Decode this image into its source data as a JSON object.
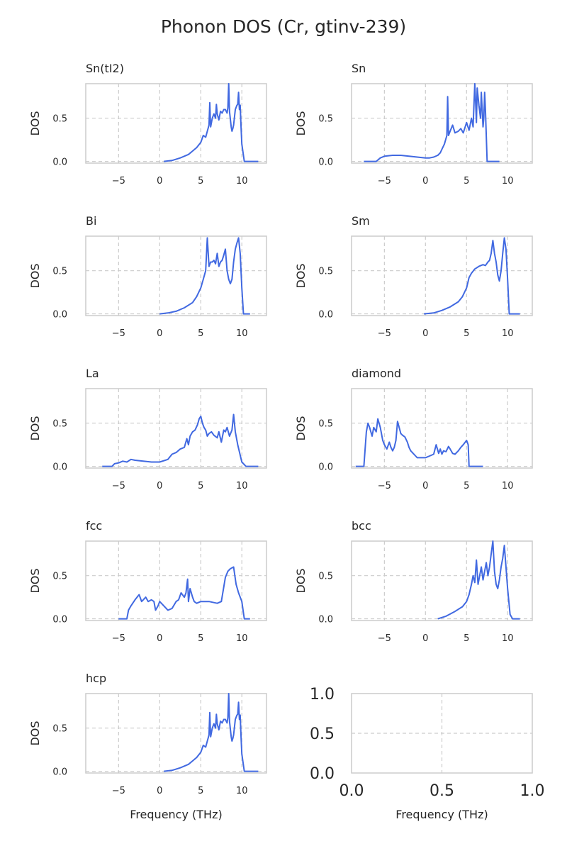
{
  "figure": {
    "suptitle": "Phonon DOS (Cr, gtinv-239)",
    "colors": {
      "line": "#4169e1",
      "grid": "#cccccc",
      "spine": "#cccccc",
      "text": "#262626"
    }
  },
  "chart_data": [
    {
      "type": "line",
      "title": "Sn(tI2)",
      "xlabel": "",
      "ylabel": "DOS",
      "xlim": [
        -9,
        13
      ],
      "ylim": [
        -0.02,
        0.9
      ],
      "xticks": [
        "−5",
        "0",
        "5",
        "10"
      ],
      "xtick_values": [
        -5,
        0,
        5,
        10
      ],
      "yticks": [
        "0.0",
        "0.5"
      ],
      "ytick_values": [
        0,
        0.5
      ],
      "grid": true,
      "series": [
        {
          "x": [
            0.5,
            1.5,
            2.5,
            3.5,
            4.0,
            4.5,
            5.0,
            5.3,
            5.6,
            5.8,
            6.0,
            6.1,
            6.2,
            6.4,
            6.6,
            6.8,
            6.9,
            7.0,
            7.2,
            7.4,
            7.6,
            7.8,
            8.0,
            8.2,
            8.3,
            8.4,
            8.5,
            8.7,
            8.8,
            8.9,
            9.0,
            9.2,
            9.4,
            9.5,
            9.6,
            9.7,
            9.8,
            9.9,
            10.0,
            10.3,
            10.6,
            11.0,
            12.0
          ],
          "y": [
            0.0,
            0.01,
            0.04,
            0.08,
            0.12,
            0.16,
            0.22,
            0.3,
            0.28,
            0.35,
            0.42,
            0.68,
            0.4,
            0.5,
            0.55,
            0.5,
            0.66,
            0.55,
            0.48,
            0.58,
            0.56,
            0.6,
            0.6,
            0.56,
            0.62,
            0.9,
            0.58,
            0.4,
            0.35,
            0.38,
            0.42,
            0.6,
            0.65,
            0.66,
            0.8,
            0.6,
            0.65,
            0.4,
            0.2,
            0.0,
            0.0,
            0.0,
            0.0
          ]
        }
      ]
    },
    {
      "type": "line",
      "title": "Sn",
      "xlabel": "",
      "ylabel": "DOS",
      "xlim": [
        -9,
        13
      ],
      "ylim": [
        -0.02,
        0.9
      ],
      "xticks": [
        "−5",
        "0",
        "5",
        "10"
      ],
      "xtick_values": [
        -5,
        0,
        5,
        10
      ],
      "yticks": [
        "0.0",
        "0.5"
      ],
      "ytick_values": [
        0,
        0.5
      ],
      "grid": true,
      "series": [
        {
          "x": [
            -7.5,
            -6.0,
            -5.5,
            -5.0,
            -4.0,
            -3.0,
            -2.0,
            -1.0,
            0.0,
            0.5,
            1.0,
            1.5,
            1.8,
            2.0,
            2.3,
            2.6,
            2.7,
            2.8,
            3.0,
            3.3,
            3.6,
            4.0,
            4.3,
            4.6,
            5.0,
            5.3,
            5.6,
            5.8,
            6.0,
            6.1,
            6.2,
            6.3,
            6.5,
            6.7,
            6.8,
            7.0,
            7.1,
            7.2,
            7.3,
            7.4,
            7.5,
            8.0,
            9.0
          ],
          "y": [
            0.0,
            0.0,
            0.04,
            0.06,
            0.07,
            0.07,
            0.06,
            0.05,
            0.04,
            0.04,
            0.05,
            0.07,
            0.1,
            0.14,
            0.2,
            0.3,
            0.75,
            0.3,
            0.35,
            0.42,
            0.33,
            0.35,
            0.38,
            0.33,
            0.45,
            0.36,
            0.5,
            0.4,
            0.9,
            0.7,
            0.45,
            0.85,
            0.65,
            0.5,
            0.8,
            0.4,
            0.5,
            0.8,
            0.6,
            0.3,
            0.0,
            0.0,
            0.0
          ]
        }
      ]
    },
    {
      "type": "line",
      "title": "Bi",
      "xlabel": "",
      "ylabel": "DOS",
      "xlim": [
        -9,
        13
      ],
      "ylim": [
        -0.02,
        0.9
      ],
      "xticks": [
        "−5",
        "0",
        "5",
        "10"
      ],
      "xtick_values": [
        -5,
        0,
        5,
        10
      ],
      "yticks": [
        "0.0",
        "0.5"
      ],
      "ytick_values": [
        0,
        0.5
      ],
      "grid": true,
      "series": [
        {
          "x": [
            0.0,
            1.0,
            2.0,
            3.0,
            4.0,
            4.5,
            5.0,
            5.3,
            5.6,
            5.8,
            6.0,
            6.2,
            6.4,
            6.6,
            6.8,
            7.0,
            7.2,
            7.4,
            7.6,
            7.8,
            8.0,
            8.2,
            8.4,
            8.6,
            8.8,
            9.0,
            9.2,
            9.4,
            9.6,
            9.8,
            10.0,
            10.2,
            10.5,
            11.0
          ],
          "y": [
            0.0,
            0.01,
            0.03,
            0.07,
            0.13,
            0.2,
            0.3,
            0.4,
            0.5,
            0.88,
            0.55,
            0.6,
            0.6,
            0.62,
            0.58,
            0.7,
            0.55,
            0.6,
            0.62,
            0.68,
            0.75,
            0.5,
            0.4,
            0.35,
            0.4,
            0.6,
            0.75,
            0.82,
            0.88,
            0.7,
            0.3,
            0.0,
            0.0,
            0.0
          ]
        }
      ]
    },
    {
      "type": "line",
      "title": "Sm",
      "xlabel": "",
      "ylabel": "DOS",
      "xlim": [
        -9,
        13
      ],
      "ylim": [
        -0.02,
        0.9
      ],
      "xticks": [
        "−5",
        "0",
        "5",
        "10"
      ],
      "xtick_values": [
        -5,
        0,
        5,
        10
      ],
      "yticks": [
        "0.0",
        "0.5"
      ],
      "ytick_values": [
        0,
        0.5
      ],
      "grid": true,
      "series": [
        {
          "x": [
            -0.2,
            1.0,
            2.0,
            3.0,
            4.0,
            4.5,
            5.0,
            5.3,
            5.6,
            6.0,
            6.5,
            7.0,
            7.3,
            7.6,
            7.8,
            8.0,
            8.2,
            8.4,
            8.6,
            8.8,
            9.0,
            9.2,
            9.4,
            9.6,
            9.8,
            10.0,
            10.2,
            10.5,
            11.0,
            11.5
          ],
          "y": [
            0.0,
            0.01,
            0.04,
            0.08,
            0.14,
            0.2,
            0.3,
            0.42,
            0.47,
            0.52,
            0.55,
            0.57,
            0.56,
            0.6,
            0.62,
            0.7,
            0.85,
            0.7,
            0.6,
            0.45,
            0.38,
            0.5,
            0.7,
            0.88,
            0.75,
            0.4,
            0.0,
            0.0,
            0.0,
            0.0
          ]
        }
      ]
    },
    {
      "type": "line",
      "title": "La",
      "xlabel": "",
      "ylabel": "DOS",
      "xlim": [
        -9,
        13
      ],
      "ylim": [
        -0.02,
        0.9
      ],
      "xticks": [
        "−5",
        "0",
        "5",
        "10"
      ],
      "xtick_values": [
        -5,
        0,
        5,
        10
      ],
      "yticks": [
        "0.0",
        "0.5"
      ],
      "ytick_values": [
        0,
        0.5
      ],
      "grid": true,
      "series": [
        {
          "x": [
            -7.0,
            -5.8,
            -5.5,
            -5.0,
            -4.5,
            -4.0,
            -3.5,
            -3.0,
            -2.0,
            -1.0,
            0.0,
            1.0,
            1.5,
            2.0,
            2.5,
            3.0,
            3.3,
            3.5,
            3.7,
            4.0,
            4.3,
            4.6,
            4.8,
            5.0,
            5.2,
            5.4,
            5.6,
            5.8,
            6.0,
            6.3,
            6.6,
            7.0,
            7.2,
            7.5,
            7.8,
            8.0,
            8.2,
            8.5,
            8.8,
            9.0,
            9.2,
            9.5,
            10.0,
            10.5,
            11.0,
            12.0
          ],
          "y": [
            0.0,
            0.0,
            0.03,
            0.04,
            0.06,
            0.05,
            0.08,
            0.07,
            0.06,
            0.05,
            0.05,
            0.08,
            0.14,
            0.16,
            0.2,
            0.22,
            0.32,
            0.25,
            0.35,
            0.4,
            0.42,
            0.48,
            0.55,
            0.58,
            0.5,
            0.45,
            0.42,
            0.35,
            0.38,
            0.4,
            0.36,
            0.33,
            0.4,
            0.28,
            0.42,
            0.4,
            0.45,
            0.35,
            0.42,
            0.6,
            0.4,
            0.25,
            0.05,
            0.0,
            0.0,
            0.0
          ]
        }
      ]
    },
    {
      "type": "line",
      "title": "diamond",
      "xlabel": "",
      "ylabel": "DOS",
      "xlim": [
        -9,
        13
      ],
      "ylim": [
        -0.02,
        0.9
      ],
      "xticks": [
        "−5",
        "0",
        "5",
        "10"
      ],
      "xtick_values": [
        -5,
        0,
        5,
        10
      ],
      "yticks": [
        "0.0",
        "0.5"
      ],
      "ytick_values": [
        0,
        0.5
      ],
      "grid": true,
      "series": [
        {
          "x": [
            -8.5,
            -7.5,
            -7.2,
            -7.0,
            -6.8,
            -6.5,
            -6.3,
            -6.0,
            -5.8,
            -5.5,
            -5.2,
            -5.0,
            -4.7,
            -4.4,
            -4.2,
            -4.0,
            -3.8,
            -3.6,
            -3.4,
            -3.2,
            -3.0,
            -2.8,
            -2.5,
            -2.2,
            -2.0,
            -1.8,
            -1.5,
            -1.2,
            -1.0,
            -0.5,
            0.0,
            0.5,
            1.0,
            1.3,
            1.6,
            1.8,
            2.0,
            2.2,
            2.5,
            2.8,
            3.0,
            3.3,
            3.6,
            4.0,
            4.3,
            4.6,
            5.0,
            5.2,
            5.3,
            5.5,
            6.0,
            7.0
          ],
          "y": [
            0.0,
            0.0,
            0.4,
            0.5,
            0.45,
            0.35,
            0.45,
            0.4,
            0.55,
            0.45,
            0.3,
            0.25,
            0.2,
            0.28,
            0.22,
            0.18,
            0.22,
            0.3,
            0.52,
            0.45,
            0.38,
            0.36,
            0.34,
            0.28,
            0.22,
            0.18,
            0.15,
            0.12,
            0.1,
            0.1,
            0.1,
            0.12,
            0.14,
            0.25,
            0.15,
            0.2,
            0.14,
            0.18,
            0.17,
            0.23,
            0.2,
            0.15,
            0.14,
            0.18,
            0.22,
            0.25,
            0.3,
            0.25,
            0.0,
            0.0,
            0.0,
            0.0
          ]
        }
      ]
    },
    {
      "type": "line",
      "title": "fcc",
      "xlabel": "",
      "ylabel": "DOS",
      "xlim": [
        -9,
        13
      ],
      "ylim": [
        -0.02,
        0.9
      ],
      "xticks": [
        "−5",
        "0",
        "5",
        "10"
      ],
      "xtick_values": [
        -5,
        0,
        5,
        10
      ],
      "yticks": [
        "0.0",
        "0.5"
      ],
      "ytick_values": [
        0,
        0.5
      ],
      "grid": true,
      "series": [
        {
          "x": [
            -5.0,
            -4.0,
            -3.8,
            -3.5,
            -3.0,
            -2.5,
            -2.2,
            -2.0,
            -1.7,
            -1.4,
            -1.0,
            -0.7,
            -0.5,
            -0.2,
            0.0,
            0.5,
            1.0,
            1.5,
            2.0,
            2.3,
            2.6,
            3.0,
            3.2,
            3.4,
            3.5,
            3.7,
            4.0,
            4.2,
            4.5,
            5.0,
            6.0,
            7.0,
            7.5,
            8.0,
            8.3,
            8.6,
            9.0,
            9.3,
            9.6,
            10.0,
            10.3,
            11.0
          ],
          "y": [
            0.0,
            0.0,
            0.1,
            0.15,
            0.22,
            0.28,
            0.2,
            0.22,
            0.25,
            0.2,
            0.22,
            0.2,
            0.1,
            0.15,
            0.2,
            0.15,
            0.1,
            0.12,
            0.2,
            0.22,
            0.3,
            0.25,
            0.3,
            0.46,
            0.2,
            0.35,
            0.25,
            0.2,
            0.18,
            0.2,
            0.2,
            0.18,
            0.2,
            0.48,
            0.55,
            0.58,
            0.6,
            0.4,
            0.3,
            0.2,
            0.0,
            0.0
          ]
        }
      ]
    },
    {
      "type": "line",
      "title": "bcc",
      "xlabel": "",
      "ylabel": "DOS",
      "xlim": [
        -9,
        13
      ],
      "ylim": [
        -0.02,
        0.9
      ],
      "xticks": [
        "−5",
        "0",
        "5",
        "10"
      ],
      "xtick_values": [
        -5,
        0,
        5,
        10
      ],
      "yticks": [
        "0.0",
        "0.5"
      ],
      "ytick_values": [
        0,
        0.5
      ],
      "grid": true,
      "series": [
        {
          "x": [
            1.5,
            2.5,
            3.5,
            4.5,
            5.0,
            5.3,
            5.6,
            5.8,
            6.0,
            6.2,
            6.4,
            6.6,
            6.8,
            7.0,
            7.2,
            7.4,
            7.6,
            7.8,
            8.0,
            8.2,
            8.4,
            8.6,
            8.8,
            9.0,
            9.2,
            9.4,
            9.6,
            9.8,
            10.0,
            10.3,
            10.6,
            11.0,
            11.5
          ],
          "y": [
            0.0,
            0.03,
            0.08,
            0.14,
            0.2,
            0.28,
            0.4,
            0.5,
            0.42,
            0.68,
            0.4,
            0.5,
            0.6,
            0.45,
            0.55,
            0.65,
            0.5,
            0.6,
            0.75,
            0.9,
            0.55,
            0.4,
            0.35,
            0.45,
            0.6,
            0.7,
            0.85,
            0.6,
            0.35,
            0.05,
            0.0,
            0.0,
            0.0
          ]
        }
      ]
    },
    {
      "type": "line",
      "title": "hcp",
      "xlabel": "Frequency (THz)",
      "ylabel": "DOS",
      "xlim": [
        -9,
        13
      ],
      "ylim": [
        -0.02,
        0.9
      ],
      "xticks": [
        "−5",
        "0",
        "5",
        "10"
      ],
      "xtick_values": [
        -5,
        0,
        5,
        10
      ],
      "yticks": [
        "0.0",
        "0.5"
      ],
      "ytick_values": [
        0,
        0.5
      ],
      "grid": true,
      "series": [
        {
          "x": [
            0.5,
            1.5,
            2.5,
            3.5,
            4.0,
            4.5,
            5.0,
            5.3,
            5.6,
            5.8,
            6.0,
            6.1,
            6.2,
            6.4,
            6.6,
            6.8,
            6.9,
            7.0,
            7.2,
            7.4,
            7.6,
            7.8,
            8.0,
            8.2,
            8.3,
            8.4,
            8.5,
            8.7,
            8.8,
            8.9,
            9.0,
            9.2,
            9.4,
            9.5,
            9.6,
            9.7,
            9.8,
            9.9,
            10.0,
            10.3,
            10.6,
            11.0,
            12.0
          ],
          "y": [
            0.0,
            0.01,
            0.04,
            0.08,
            0.12,
            0.16,
            0.22,
            0.3,
            0.28,
            0.35,
            0.42,
            0.68,
            0.4,
            0.5,
            0.55,
            0.5,
            0.66,
            0.55,
            0.48,
            0.58,
            0.56,
            0.6,
            0.6,
            0.56,
            0.62,
            0.9,
            0.58,
            0.4,
            0.35,
            0.38,
            0.42,
            0.6,
            0.65,
            0.66,
            0.8,
            0.6,
            0.65,
            0.4,
            0.2,
            0.0,
            0.0,
            0.0,
            0.0
          ]
        }
      ]
    },
    {
      "type": "line",
      "title": "",
      "xlabel": "Frequency (THz)",
      "ylabel": "",
      "xlim": [
        0,
        1
      ],
      "ylim": [
        0,
        1
      ],
      "xticks": [
        "0.0",
        "0.5",
        "1.0"
      ],
      "xtick_values": [
        0,
        0.5,
        1
      ],
      "yticks": [
        "0.0",
        "0.5",
        "1.0"
      ],
      "ytick_values": [
        0,
        0.5,
        1
      ],
      "grid": true,
      "series": []
    }
  ]
}
